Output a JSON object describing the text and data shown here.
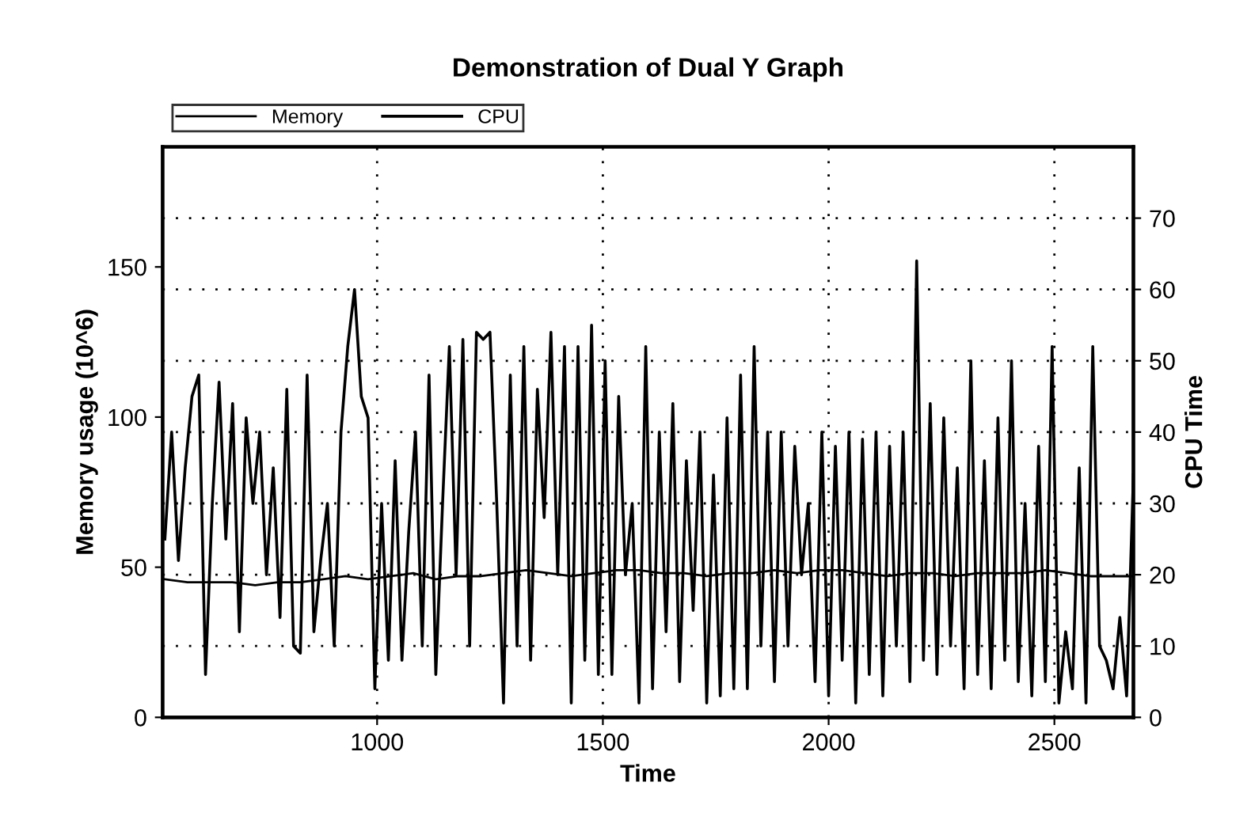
{
  "chart_data": {
    "type": "line",
    "title": "Demonstration of Dual Y Graph",
    "xlabel": "Time",
    "ylabel": "Memory usage (10^6)",
    "y2label": "CPU Time",
    "xlim": [
      525,
      2675
    ],
    "xticks": [
      1000,
      1500,
      2000,
      2500
    ],
    "ylim": [
      0,
      190
    ],
    "yticks": [
      0,
      50,
      100,
      150
    ],
    "y2lim": [
      0,
      80
    ],
    "y2ticks": [
      0,
      10,
      20,
      30,
      40,
      50,
      60,
      70
    ],
    "grid": true,
    "legend": "top left",
    "line_style": "solid",
    "marker": "none",
    "series": [
      {
        "name": "Memory",
        "color": "#000000",
        "x": [
          530,
          580,
          630,
          680,
          730,
          780,
          830,
          880,
          930,
          980,
          1030,
          1080,
          1130,
          1180,
          1230,
          1280,
          1330,
          1380,
          1430,
          1480,
          1530,
          1580,
          1630,
          1680,
          1730,
          1780,
          1830,
          1880,
          1930,
          1980,
          2030,
          2080,
          2130,
          2180,
          2230,
          2280,
          2330,
          2380,
          2430,
          2480,
          2530,
          2580,
          2630,
          2675
        ],
        "values": [
          46,
          45,
          45,
          45,
          44,
          45,
          45,
          46,
          47,
          46,
          47,
          48,
          46,
          47,
          47,
          48,
          49,
          48,
          47,
          48,
          49,
          49,
          48,
          48,
          47,
          48,
          48,
          49,
          48,
          49,
          49,
          48,
          47,
          48,
          48,
          47,
          48,
          48,
          48,
          49,
          48,
          47,
          47,
          47
        ]
      },
      {
        "name": "CPU",
        "color": "#000000",
        "axis": "y2",
        "x": [
          530,
          545,
          560,
          575,
          590,
          605,
          620,
          635,
          650,
          665,
          680,
          695,
          710,
          725,
          740,
          755,
          770,
          785,
          800,
          815,
          830,
          845,
          860,
          875,
          890,
          905,
          920,
          935,
          950,
          965,
          980,
          995,
          1010,
          1025,
          1040,
          1055,
          1070,
          1085,
          1100,
          1115,
          1130,
          1145,
          1160,
          1175,
          1190,
          1205,
          1220,
          1235,
          1250,
          1265,
          1280,
          1295,
          1310,
          1325,
          1340,
          1355,
          1370,
          1385,
          1400,
          1415,
          1430,
          1445,
          1460,
          1475,
          1490,
          1505,
          1520,
          1535,
          1550,
          1565,
          1580,
          1595,
          1610,
          1625,
          1640,
          1655,
          1670,
          1685,
          1700,
          1715,
          1730,
          1745,
          1760,
          1775,
          1790,
          1805,
          1820,
          1835,
          1850,
          1865,
          1880,
          1895,
          1910,
          1925,
          1940,
          1955,
          1970,
          1985,
          2000,
          2015,
          2030,
          2045,
          2060,
          2075,
          2090,
          2105,
          2120,
          2135,
          2150,
          2165,
          2180,
          2195,
          2210,
          2225,
          2240,
          2255,
          2270,
          2285,
          2300,
          2315,
          2330,
          2345,
          2360,
          2375,
          2390,
          2405,
          2420,
          2435,
          2450,
          2465,
          2480,
          2495,
          2510,
          2525,
          2540,
          2555,
          2570,
          2585,
          2600,
          2615,
          2630,
          2645,
          2660,
          2675
        ],
        "values": [
          25,
          40,
          22,
          35,
          45,
          48,
          6,
          30,
          47,
          25,
          44,
          12,
          42,
          30,
          40,
          20,
          35,
          14,
          46,
          10,
          9,
          48,
          12,
          22,
          30,
          10,
          40,
          52,
          60,
          45,
          42,
          4,
          30,
          8,
          36,
          8,
          26,
          40,
          10,
          48,
          6,
          30,
          52,
          20,
          53,
          10,
          54,
          53,
          54,
          30,
          2,
          48,
          10,
          52,
          8,
          46,
          28,
          54,
          20,
          52,
          2,
          52,
          8,
          55,
          6,
          50,
          6,
          45,
          20,
          30,
          2,
          52,
          4,
          40,
          12,
          44,
          5,
          36,
          15,
          40,
          2,
          34,
          3,
          42,
          4,
          48,
          4,
          52,
          10,
          40,
          5,
          40,
          10,
          38,
          20,
          30,
          5,
          40,
          3,
          38,
          8,
          40,
          2,
          39,
          6,
          40,
          3,
          38,
          10,
          40,
          5,
          64,
          8,
          44,
          6,
          42,
          10,
          35,
          4,
          50,
          6,
          36,
          4,
          42,
          8,
          50,
          5,
          30,
          3,
          38,
          5,
          52,
          2,
          12,
          4,
          35,
          2,
          52,
          10,
          8,
          4,
          14,
          3,
          34
        ]
      }
    ]
  }
}
